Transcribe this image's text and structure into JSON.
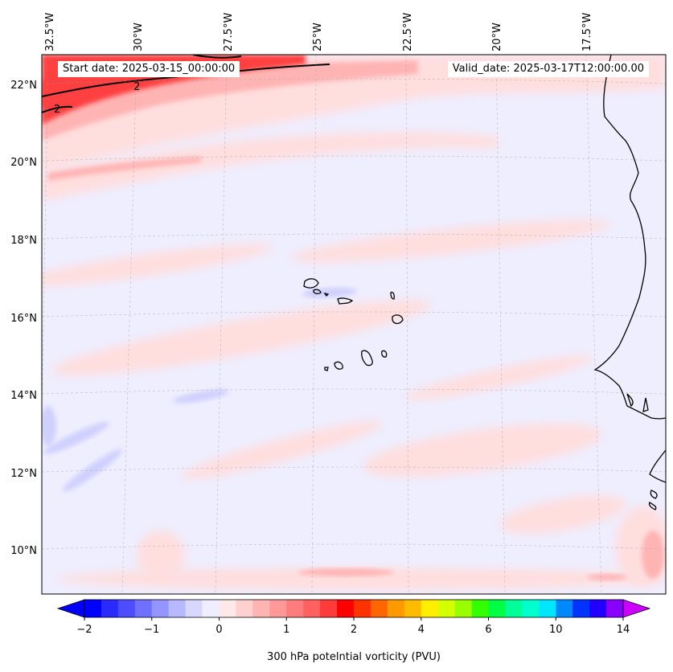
{
  "map": {
    "start_date_text": "Start date: 2025-03-15_00:00:00",
    "valid_date_text": "Valid_date: 2025-03-17T12:00:00.00",
    "variable": "300 hPa potential vorticity",
    "contour_label": "2",
    "lon_labels": [
      "32.5°W",
      "30°W",
      "27.5°W",
      "25°W",
      "22.5°W",
      "20°W",
      "17.5°W"
    ],
    "lat_labels": [
      "22°N",
      "20°N",
      "18°N",
      "16°N",
      "14°N",
      "12°N",
      "10°N"
    ],
    "colors": {
      "background_pv": "#eeeeff",
      "light_red": "#ffdede",
      "mid_red": "#ffb4b4",
      "strong_red": "#ff4040",
      "light_blue": "#d0d0ff",
      "coastline": "#000000"
    }
  },
  "colorbar": {
    "title": "300 hPa potelntial vorticity (PVU)",
    "tick_labels": [
      "−2",
      "−1",
      "0",
      "1",
      "2",
      "4",
      "6",
      "10",
      "14"
    ],
    "colors": [
      "#0000ff",
      "#2a2aff",
      "#4d4dff",
      "#7070ff",
      "#9595ff",
      "#b8b8ff",
      "#d8d8ff",
      "#eeeeff",
      "#ffe8e8",
      "#ffd0d0",
      "#ffb4b4",
      "#ff9898",
      "#ff7c7c",
      "#ff6060",
      "#ff3a3a",
      "#ff0000",
      "#ff3300",
      "#ff6600",
      "#ff9900",
      "#ffbb00",
      "#ffee00",
      "#d4ff00",
      "#99ff00",
      "#33ff00",
      "#00ff44",
      "#00ff99",
      "#00ffcc",
      "#00e6ff",
      "#0088ff",
      "#0033ff",
      "#2200ff",
      "#8800ff"
    ],
    "min_arrow_color": "#0000ff",
    "max_arrow_color": "#cc00ff"
  }
}
